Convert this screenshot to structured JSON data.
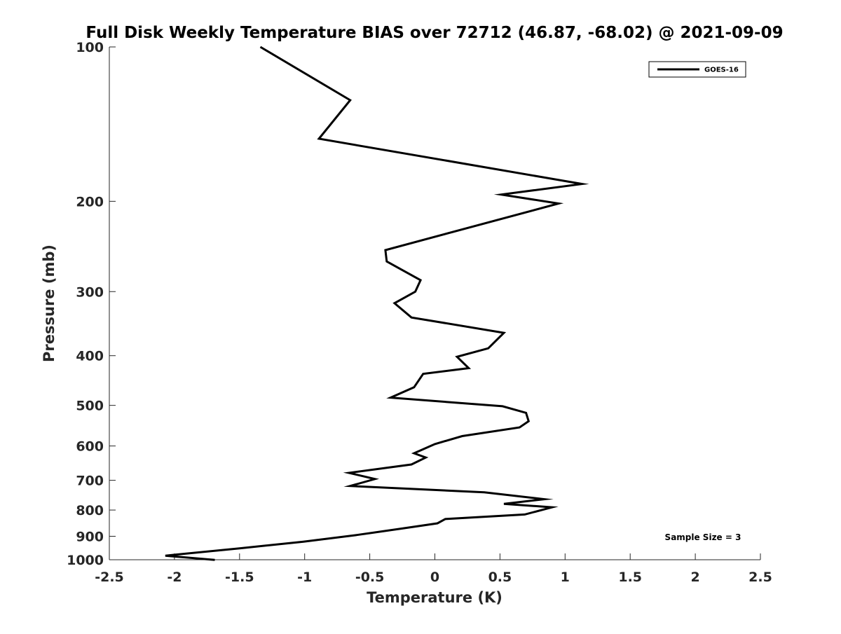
{
  "chart_data": {
    "type": "line",
    "title": "Full Disk Weekly Temperature BIAS over 72712 (46.87, -68.02) @ 2021-09-09",
    "xlabel": "Temperature (K)",
    "ylabel": "Pressure (mb)",
    "xlim": [
      -2.5,
      2.5
    ],
    "ylim": [
      100,
      1000
    ],
    "y_scale": "log",
    "y_reversed": true,
    "grid": false,
    "x_ticks": [
      -2.5,
      -2,
      -1.5,
      -1,
      -0.5,
      0,
      0.5,
      1,
      1.5,
      2,
      2.5
    ],
    "x_tick_labels": [
      "-2.5",
      "-2",
      "-1.5",
      "-1",
      "-0.5",
      "0",
      "0.5",
      "1",
      "1.5",
      "2",
      "2.5"
    ],
    "y_ticks": [
      100,
      200,
      300,
      400,
      500,
      600,
      700,
      800,
      900,
      1000
    ],
    "y_tick_labels": [
      "100",
      "200",
      "300",
      "400",
      "500",
      "600",
      "700",
      "800",
      "900",
      "1000"
    ],
    "legend": {
      "placement": "top-right",
      "entries": [
        "GOES-16"
      ]
    },
    "annotation": "Sample Size = 3",
    "series": [
      {
        "name": "GOES-16",
        "color": "#000000",
        "x": [
          -1.34,
          -0.65,
          -0.89,
          1.13,
          0.51,
          0.95,
          -0.38,
          -0.37,
          -0.11,
          -0.15,
          -0.31,
          -0.18,
          0.53,
          0.41,
          0.17,
          0.26,
          -0.09,
          -0.16,
          -0.34,
          0.52,
          0.7,
          0.72,
          0.65,
          0.21,
          0.0,
          -0.16,
          -0.07,
          -0.18,
          -0.66,
          -0.46,
          -0.65,
          0.38,
          0.84,
          0.53,
          0.9,
          0.69,
          0.08,
          0.02,
          -0.25,
          -0.6,
          -1.01,
          -1.5,
          -2.07,
          -1.69
        ],
        "y": [
          100,
          127,
          151,
          185,
          194,
          202,
          249,
          262,
          285,
          300,
          316,
          337,
          361,
          387,
          402,
          423,
          434,
          461,
          483,
          502,
          517,
          537,
          552,
          574,
          595,
          620,
          632,
          652,
          677,
          696,
          718,
          739,
          762,
          778,
          790,
          816,
          833,
          849,
          869,
          895,
          922,
          950,
          982,
          1001
        ]
      }
    ]
  }
}
